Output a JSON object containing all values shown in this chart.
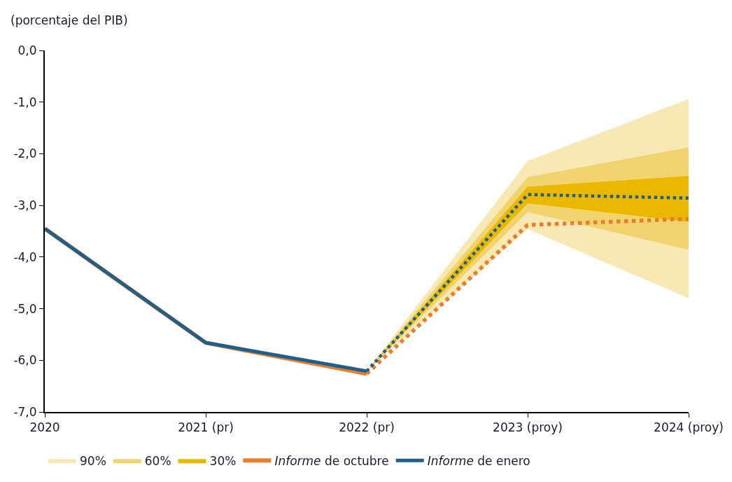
{
  "chart_data": {
    "type": "line",
    "ylabel": "(porcentaje del PIB)",
    "categories": [
      "2020",
      "2021 (pr)",
      "2022 (pr)",
      "2023 (proy)",
      "2024 (proy)"
    ],
    "series": [
      {
        "name": "90%",
        "type": "area",
        "color": "#f8e8b4",
        "values": [
          null,
          null,
          null,
          null,
          null
        ],
        "lower": [
          null,
          null,
          -6.21,
          -3.46,
          -4.8
        ],
        "upper": [
          null,
          null,
          -6.21,
          -2.14,
          -0.94
        ]
      },
      {
        "name": "60%",
        "type": "area",
        "color": "#f2d46f",
        "values": [
          null,
          null,
          null,
          null,
          null
        ],
        "lower": [
          null,
          null,
          -6.21,
          -3.13,
          -3.86
        ],
        "upper": [
          null,
          null,
          -6.21,
          -2.45,
          -1.88
        ]
      },
      {
        "name": "30%",
        "type": "area",
        "color": "#ebb800",
        "values": [
          null,
          null,
          null,
          null,
          null
        ],
        "lower": [
          null,
          null,
          -6.21,
          -2.96,
          -3.32
        ],
        "upper": [
          null,
          null,
          -6.21,
          -2.64,
          -2.43
        ]
      },
      {
        "name": "Informe de octubre",
        "color": "#e87d2b",
        "line_style": "solid",
        "values": [
          -3.45,
          -5.66,
          -6.26,
          null,
          null
        ]
      },
      {
        "color": "#e87d2b",
        "line_style": "dotted",
        "values": [
          null,
          null,
          -6.26,
          -3.38,
          -3.26
        ]
      },
      {
        "name": "Informe de enero",
        "color": "#1f5f8b",
        "line_style": "solid",
        "values": [
          -3.45,
          -5.66,
          -6.21,
          null,
          null
        ]
      },
      {
        "color": "#1f5f8b",
        "line_style": "dotted",
        "values": [
          null,
          null,
          -6.21,
          -2.79,
          -2.86
        ]
      }
    ],
    "ylim": [
      -7,
      0
    ],
    "yticks": [
      {
        "value": 0,
        "label": "0,0"
      },
      {
        "value": -1,
        "label": "-1,0"
      },
      {
        "value": -2,
        "label": "-2,0"
      },
      {
        "value": -3,
        "label": "-3,0"
      },
      {
        "value": -4,
        "label": "-4,0"
      },
      {
        "value": -5,
        "label": "-5,0"
      },
      {
        "value": -6,
        "label": "-6,0"
      },
      {
        "value": -7,
        "label": "-7,0"
      }
    ],
    "legend": "bottom",
    "marker": "none"
  }
}
